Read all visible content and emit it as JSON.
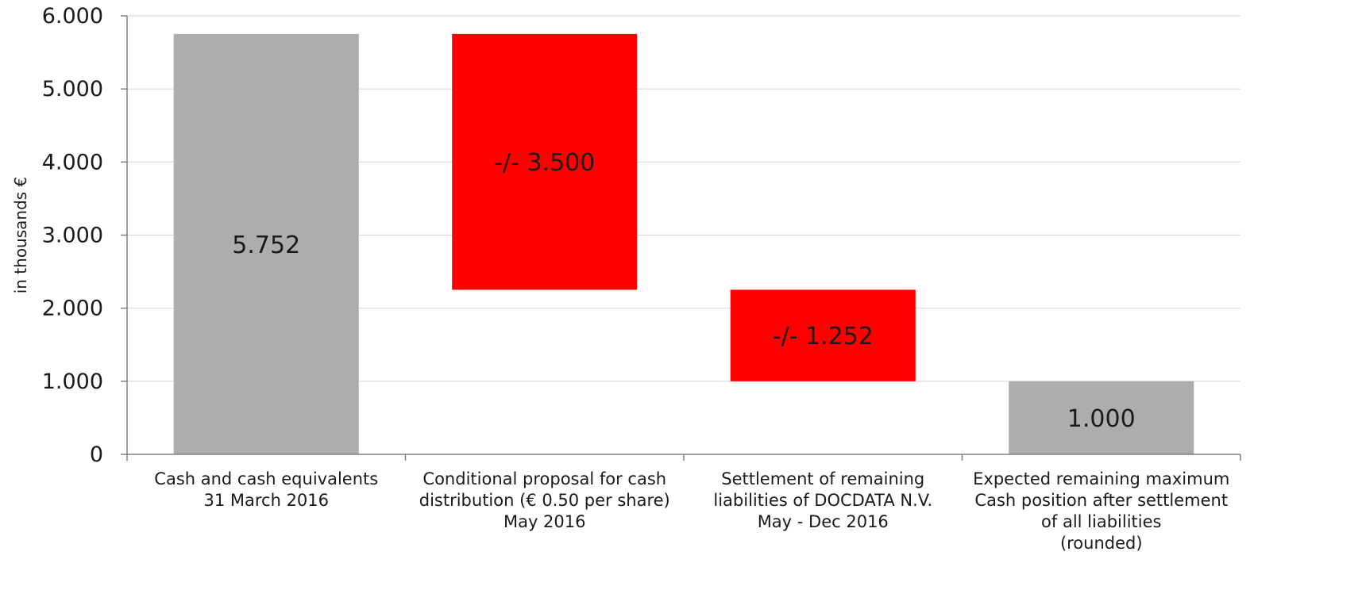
{
  "chart_data": {
    "type": "bar",
    "subtype": "waterfall",
    "title": "",
    "xlabel": "",
    "ylabel": "in thousands €",
    "ylim": [
      0,
      6000
    ],
    "yticks": [
      0,
      1000,
      2000,
      3000,
      4000,
      5000,
      6000
    ],
    "ytick_labels": [
      "0",
      "1.000",
      "2.000",
      "3.000",
      "4.000",
      "5.000",
      "6.000"
    ],
    "grid": true,
    "legend": "none",
    "categories": [
      [
        "Cash and cash equivalents",
        "31 March 2016"
      ],
      [
        "Conditional proposal for cash",
        "distribution (€ 0.50 per share)",
        "May 2016"
      ],
      [
        "Settlement of remaining",
        "liabilities of DOCDATA N.V.",
        "May - Dec 2016"
      ],
      [
        "Expected remaining maximum",
        "Cash position after settlement",
        "of all liabilities",
        "(rounded)"
      ]
    ],
    "bars": [
      {
        "kind": "total",
        "start": 0,
        "end": 5752,
        "label": "5.752",
        "color": "#adadad",
        "label_color": "#1a1a1a"
      },
      {
        "kind": "decrease",
        "start": 5752,
        "end": 2252,
        "label": "-/- 3.500",
        "color": "#ff0000",
        "label_color": "#1a1a1a"
      },
      {
        "kind": "decrease",
        "start": 2252,
        "end": 1000,
        "label": "-/- 1.252",
        "color": "#ff0000",
        "label_color": "#1a1a1a"
      },
      {
        "kind": "total",
        "start": 0,
        "end": 1000,
        "label": "1.000",
        "color": "#adadad",
        "label_color": "#1a1a1a"
      }
    ],
    "colors": {
      "grid": "#d9d9d9",
      "axis": "#808080"
    }
  }
}
